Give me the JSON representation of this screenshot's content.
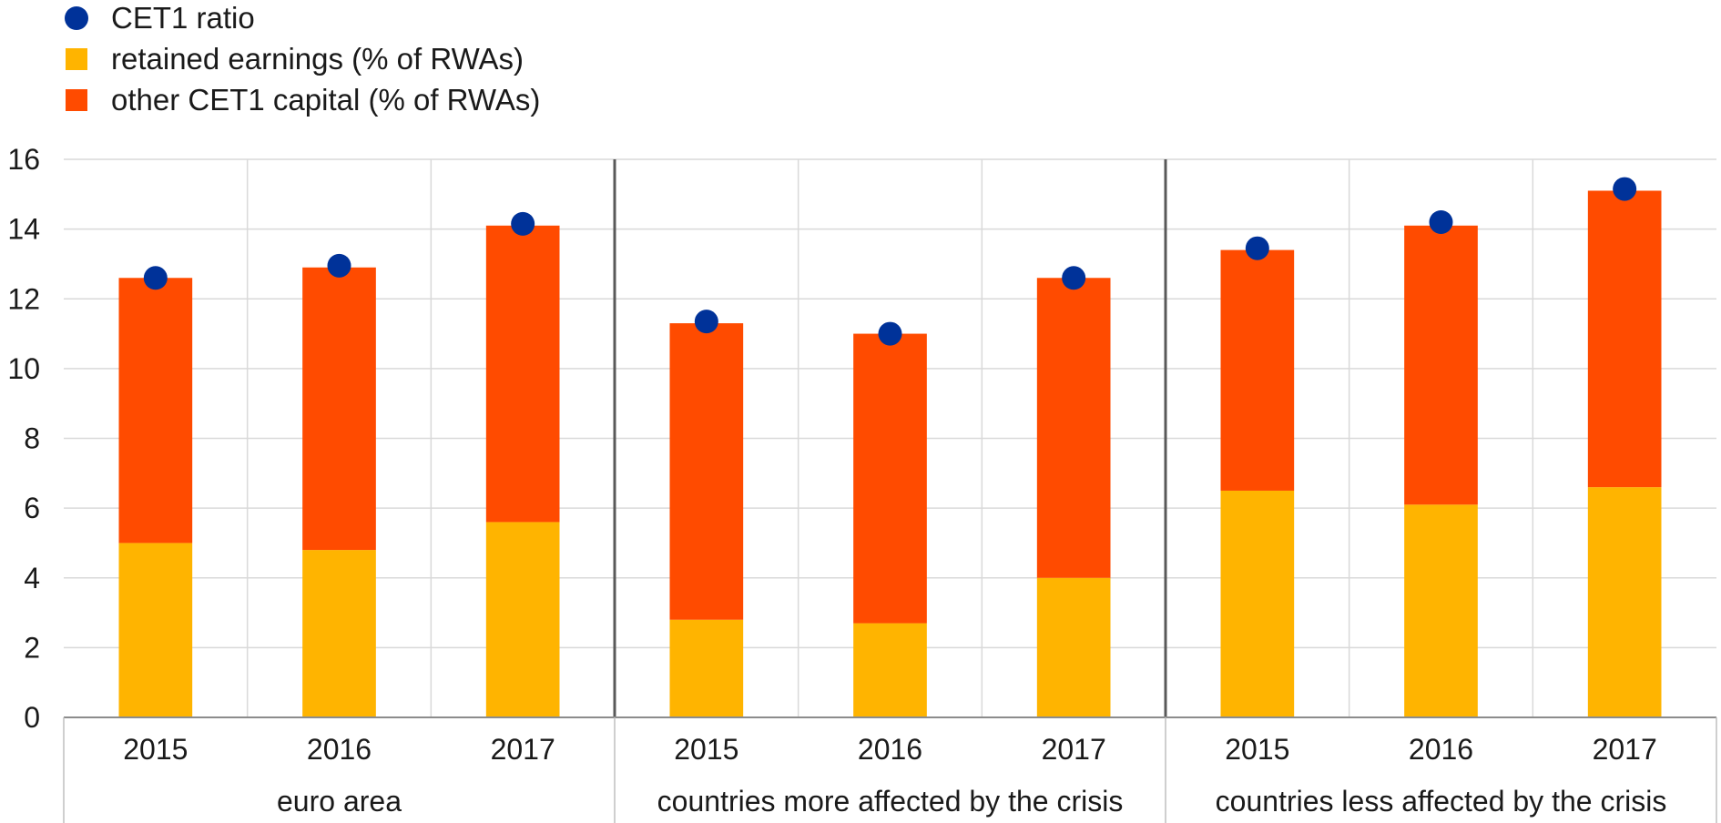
{
  "chart_data": {
    "type": "bar",
    "stacked": true,
    "ylim": [
      0,
      16
    ],
    "yticks": [
      0,
      2,
      4,
      6,
      8,
      10,
      12,
      14,
      16
    ],
    "grid": true,
    "legend_position": "top-left",
    "groups": [
      {
        "label": "euro area",
        "categories": [
          "2015",
          "2016",
          "2017"
        ]
      },
      {
        "label": "countries more affected by the crisis",
        "categories": [
          "2015",
          "2016",
          "2017"
        ]
      },
      {
        "label": "countries less affected by the crisis",
        "categories": [
          "2015",
          "2016",
          "2017"
        ]
      }
    ],
    "series": [
      {
        "name": "retained earnings (% of RWAs)",
        "kind": "bar",
        "color": "#FFB400",
        "values": [
          5.0,
          4.8,
          5.6,
          2.8,
          2.7,
          4.0,
          6.5,
          6.1,
          6.6
        ]
      },
      {
        "name": "other CET1 capital (% of RWAs)",
        "kind": "bar",
        "color": "#FF4B00",
        "values": [
          7.6,
          8.1,
          8.5,
          8.5,
          8.3,
          8.6,
          6.9,
          8.0,
          8.5
        ]
      },
      {
        "name": "CET1 ratio",
        "kind": "marker",
        "color": "#003299",
        "values": [
          12.6,
          12.95,
          14.15,
          11.35,
          11.0,
          12.6,
          13.45,
          14.2,
          15.15
        ]
      }
    ],
    "legend": [
      {
        "name": "CET1 ratio",
        "shape": "circle",
        "color": "#003299"
      },
      {
        "name": "retained earnings (% of RWAs)",
        "shape": "square",
        "color": "#FFB400"
      },
      {
        "name": "other CET1 capital (% of RWAs)",
        "shape": "square",
        "color": "#FF4B00"
      }
    ]
  }
}
